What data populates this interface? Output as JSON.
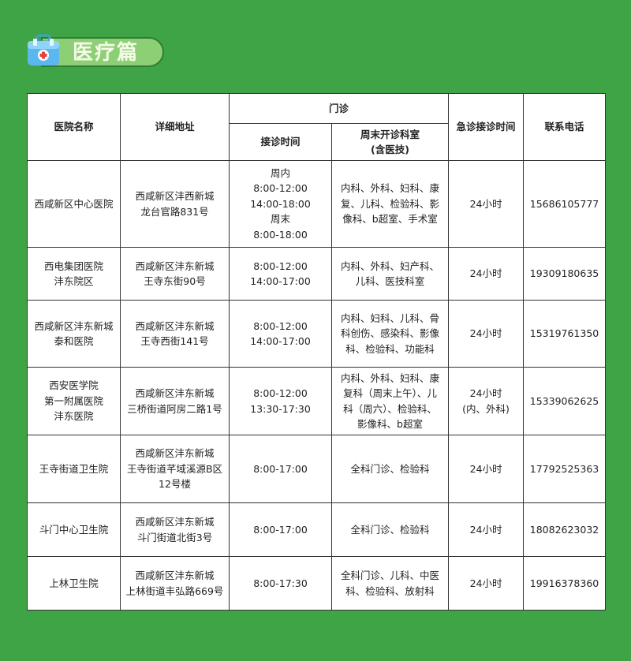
{
  "section_title": "医疗篇",
  "colors": {
    "background": "#3fa445",
    "badge": "#8dcf74"
  },
  "icon": "medical-kit-icon",
  "table": {
    "headers": {
      "name": "医院名称",
      "address": "详细地址",
      "outpatient": "门诊",
      "hours": "接诊时间",
      "weekend_depts": "周末开诊科室\n(含医技)",
      "emergency": "急诊接诊时间",
      "phone": "联系电话"
    },
    "rows": [
      {
        "name": "西咸新区中心医院",
        "address": "西咸新区沣西新城\n龙台官路831号",
        "hours": "周内\n8:00-12:00\n14:00-18:00\n周末\n8:00-18:00",
        "depts": "内科、外科、妇科、康\n复、儿科、检验科、影\n像科、b超室、手术室",
        "emergency": "24小时",
        "phone": "15686105777"
      },
      {
        "name": "西电集团医院\n沣东院区",
        "address": "西咸新区沣东新城\n王寺东街90号",
        "hours": "8:00-12:00\n14:00-17:00",
        "depts": "内科、外科、妇产科、\n儿科、医技科室",
        "emergency": "24小时",
        "phone": "19309180635"
      },
      {
        "name": "西咸新区沣东新城\n泰和医院",
        "address": "西咸新区沣东新城\n王寺西街141号",
        "hours": "8:00-12:00\n14:00-17:00",
        "depts": "内科、妇科、儿科、骨\n科创伤、感染科、影像\n科、检验科、功能科",
        "emergency": "24小时",
        "phone": "15319761350"
      },
      {
        "name": "西安医学院\n第一附属医院\n沣东医院",
        "address": "西咸新区沣东新城\n三桥街道阿房二路1号",
        "hours": "8:00-12:00\n13:30-17:30",
        "depts": "内科、外科、妇科、康\n复科（周末上午）、儿\n科（周六）、检验科、\n影像科、b超室",
        "emergency": "24小时\n(内、外科)",
        "phone": "15339062625"
      },
      {
        "name": "王寺街道卫生院",
        "address": "西咸新区沣东新城\n王寺街道芊域溪源B区\n12号楼",
        "hours": "8:00-17:00",
        "depts": "全科门诊、检验科",
        "emergency": "24小时",
        "phone": "17792525363"
      },
      {
        "name": "斗门中心卫生院",
        "address": "西咸新区沣东新城\n斗门街道北街3号",
        "hours": "8:00-17:00",
        "depts": "全科门诊、检验科",
        "emergency": "24小时",
        "phone": "18082623032"
      },
      {
        "name": "上林卫生院",
        "address": "西咸新区沣东新城\n上林街道丰弘路669号",
        "hours": "8:00-17:30",
        "depts": "全科门诊、儿科、中医\n科、检验科、放射科",
        "emergency": "24小时",
        "phone": "19916378360"
      }
    ]
  }
}
